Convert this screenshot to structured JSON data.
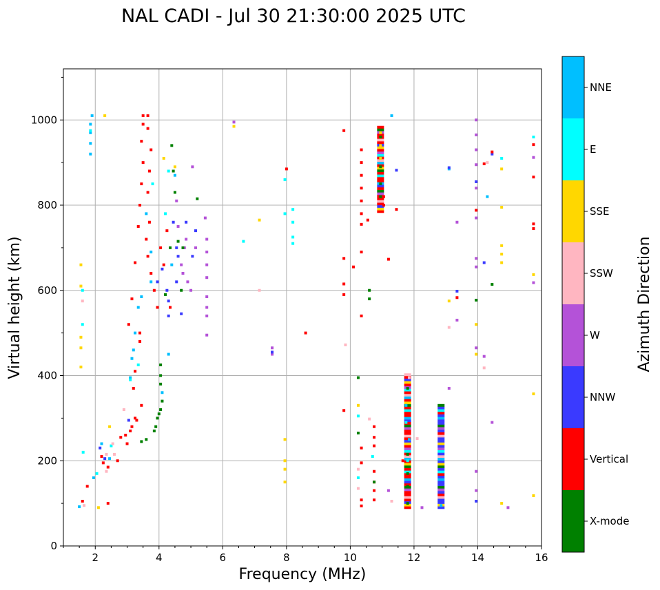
{
  "chart_data": {
    "type": "scatter",
    "title": "NAL CADI - Jul 30 21:30:00 2025 UTC",
    "xlabel": "Frequency (MHz)",
    "ylabel": "Virtual height (km)",
    "xlim": [
      1.0,
      16.0
    ],
    "ylim": [
      0,
      1120
    ],
    "xticks": [
      2,
      4,
      6,
      8,
      10,
      12,
      14,
      16
    ],
    "yticks": [
      0,
      200,
      400,
      600,
      800,
      1000
    ],
    "grid": true,
    "colorbar": {
      "title": "Azimuth Direction",
      "categories": [
        "X-mode",
        "Vertical",
        "NNW",
        "W",
        "SSW",
        "SSE",
        "E",
        "NNE"
      ],
      "colors": {
        "X-mode": "#008000",
        "Vertical": "#ff0000",
        "NNW": "#3a3aff",
        "W": "#b452d8",
        "SSW": "#ffb6c1",
        "SSE": "#ffd700",
        "E": "#00ffff",
        "NNE": "#00bfff"
      }
    },
    "series": [
      {
        "name": "NNE",
        "points": [
          [
            1.5,
            92
          ],
          [
            1.85,
            920
          ],
          [
            1.85,
            945
          ],
          [
            1.85,
            970
          ],
          [
            1.85,
            990
          ],
          [
            1.9,
            1010
          ],
          [
            1.95,
            160
          ],
          [
            2.2,
            240
          ],
          [
            2.45,
            205
          ],
          [
            3.1,
            395
          ],
          [
            3.15,
            440
          ],
          [
            3.2,
            460
          ],
          [
            3.25,
            500
          ],
          [
            3.35,
            560
          ],
          [
            3.45,
            585
          ],
          [
            3.6,
            780
          ],
          [
            3.75,
            620
          ],
          [
            3.75,
            690
          ],
          [
            4.1,
            360
          ],
          [
            4.3,
            450
          ],
          [
            4.4,
            660
          ],
          [
            4.5,
            870
          ],
          [
            11.3,
            1010
          ],
          [
            11.75,
            330
          ],
          [
            11.85,
            250
          ],
          [
            12.85,
            95
          ],
          [
            13.1,
            885
          ],
          [
            14.3,
            820
          ]
        ]
      },
      {
        "name": "E",
        "points": [
          [
            1.6,
            600
          ],
          [
            1.6,
            520
          ],
          [
            1.62,
            220
          ],
          [
            1.85,
            975
          ],
          [
            2.05,
            170
          ],
          [
            2.5,
            235
          ],
          [
            3.1,
            390
          ],
          [
            3.35,
            425
          ],
          [
            3.8,
            850
          ],
          [
            4.2,
            780
          ],
          [
            4.3,
            880
          ],
          [
            6.65,
            715
          ],
          [
            7.95,
            780
          ],
          [
            7.95,
            860
          ],
          [
            8.2,
            725
          ],
          [
            8.2,
            760
          ],
          [
            8.2,
            790
          ],
          [
            8.2,
            710
          ],
          [
            10.25,
            305
          ],
          [
            10.25,
            160
          ],
          [
            10.7,
            210
          ],
          [
            11.75,
            290
          ],
          [
            11.8,
            200
          ],
          [
            15.75,
            960
          ],
          [
            14.75,
            910
          ]
        ]
      },
      {
        "name": "SSE",
        "points": [
          [
            1.55,
            420
          ],
          [
            1.55,
            465
          ],
          [
            1.55,
            490
          ],
          [
            1.55,
            660
          ],
          [
            1.55,
            610
          ],
          [
            2.1,
            90
          ],
          [
            2.3,
            1010
          ],
          [
            2.45,
            280
          ],
          [
            4.15,
            910
          ],
          [
            4.5,
            890
          ],
          [
            6.35,
            985
          ],
          [
            7.15,
            765
          ],
          [
            7.95,
            250
          ],
          [
            7.95,
            200
          ],
          [
            7.95,
            180
          ],
          [
            7.95,
            150
          ],
          [
            10.25,
            330
          ],
          [
            10.95,
            970
          ],
          [
            10.95,
            940
          ],
          [
            10.95,
            910
          ],
          [
            13.1,
            575
          ],
          [
            13.95,
            520
          ],
          [
            13.95,
            450
          ],
          [
            14.75,
            885
          ],
          [
            14.75,
            795
          ],
          [
            14.75,
            705
          ],
          [
            14.75,
            685
          ],
          [
            14.75,
            665
          ],
          [
            14.75,
            100
          ],
          [
            15.75,
            637
          ],
          [
            15.75,
            357
          ],
          [
            15.75,
            118
          ]
        ]
      },
      {
        "name": "SSW",
        "points": [
          [
            1.6,
            575
          ],
          [
            1.65,
            95
          ],
          [
            2.35,
            215
          ],
          [
            2.35,
            175
          ],
          [
            2.55,
            240
          ],
          [
            2.6,
            215
          ],
          [
            2.9,
            320
          ],
          [
            7.15,
            600
          ],
          [
            9.85,
            472
          ],
          [
            10.25,
            180
          ],
          [
            10.25,
            135
          ],
          [
            10.6,
            298
          ],
          [
            11.3,
            105
          ],
          [
            11.85,
            395
          ],
          [
            12.1,
            252
          ],
          [
            13.1,
            513
          ],
          [
            14.2,
            418
          ],
          [
            14.3,
            900
          ]
        ]
      },
      {
        "name": "W",
        "points": [
          [
            4.55,
            810
          ],
          [
            4.6,
            750
          ],
          [
            4.7,
            660
          ],
          [
            4.75,
            640
          ],
          [
            4.8,
            700
          ],
          [
            4.85,
            720
          ],
          [
            4.9,
            620
          ],
          [
            5.0,
            600
          ],
          [
            5.05,
            890
          ],
          [
            5.15,
            700
          ],
          [
            5.45,
            770
          ],
          [
            5.5,
            720
          ],
          [
            5.5,
            690
          ],
          [
            5.5,
            660
          ],
          [
            5.5,
            630
          ],
          [
            5.5,
            585
          ],
          [
            5.5,
            560
          ],
          [
            5.5,
            540
          ],
          [
            5.5,
            495
          ],
          [
            6.35,
            995
          ],
          [
            7.55,
            465
          ],
          [
            7.55,
            450
          ],
          [
            11.2,
            130
          ],
          [
            12.25,
            90
          ],
          [
            13.1,
            370
          ],
          [
            13.35,
            760
          ],
          [
            13.35,
            530
          ],
          [
            13.95,
            1000
          ],
          [
            13.95,
            965
          ],
          [
            13.95,
            930
          ],
          [
            13.95,
            895
          ],
          [
            13.95,
            840
          ],
          [
            13.95,
            770
          ],
          [
            13.95,
            675
          ],
          [
            13.95,
            655
          ],
          [
            13.95,
            465
          ],
          [
            13.95,
            175
          ],
          [
            13.95,
            130
          ],
          [
            14.2,
            445
          ],
          [
            14.45,
            290
          ],
          [
            14.95,
            90
          ],
          [
            15.75,
            912
          ],
          [
            15.75,
            618
          ]
        ]
      },
      {
        "name": "NNW",
        "points": [
          [
            2.15,
            230
          ],
          [
            2.3,
            205
          ],
          [
            3.05,
            295
          ],
          [
            3.95,
            620
          ],
          [
            4.1,
            650
          ],
          [
            4.25,
            600
          ],
          [
            4.3,
            575
          ],
          [
            4.3,
            540
          ],
          [
            4.45,
            760
          ],
          [
            4.55,
            700
          ],
          [
            4.55,
            620
          ],
          [
            4.6,
            680
          ],
          [
            4.7,
            545
          ],
          [
            4.85,
            760
          ],
          [
            5.05,
            680
          ],
          [
            5.15,
            740
          ],
          [
            7.55,
            455
          ],
          [
            11.45,
            882
          ],
          [
            13.1,
            888
          ],
          [
            13.35,
            598
          ],
          [
            13.95,
            855
          ],
          [
            13.95,
            105
          ],
          [
            14.2,
            665
          ],
          [
            14.45,
            920
          ]
        ]
      },
      {
        "name": "Vertical",
        "points": [
          [
            1.6,
            105
          ],
          [
            1.75,
            140
          ],
          [
            2.2,
            210
          ],
          [
            2.25,
            195
          ],
          [
            2.4,
            185
          ],
          [
            2.7,
            200
          ],
          [
            2.8,
            255
          ],
          [
            2.95,
            260
          ],
          [
            3.0,
            240
          ],
          [
            3.1,
            270
          ],
          [
            3.15,
            280
          ],
          [
            3.25,
            300
          ],
          [
            3.2,
            370
          ],
          [
            3.25,
            410
          ],
          [
            3.05,
            520
          ],
          [
            3.15,
            580
          ],
          [
            3.25,
            665
          ],
          [
            3.35,
            750
          ],
          [
            3.4,
            800
          ],
          [
            3.45,
            850
          ],
          [
            3.5,
            900
          ],
          [
            3.45,
            950
          ],
          [
            3.5,
            990
          ],
          [
            3.5,
            1010
          ],
          [
            3.65,
            1010
          ],
          [
            3.65,
            980
          ],
          [
            3.75,
            930
          ],
          [
            3.7,
            880
          ],
          [
            3.65,
            830
          ],
          [
            3.7,
            760
          ],
          [
            3.6,
            720
          ],
          [
            3.65,
            680
          ],
          [
            3.75,
            640
          ],
          [
            3.85,
            600
          ],
          [
            3.95,
            560
          ],
          [
            4.05,
            700
          ],
          [
            4.15,
            660
          ],
          [
            4.25,
            740
          ],
          [
            4.35,
            560
          ],
          [
            3.4,
            500
          ],
          [
            3.4,
            480
          ],
          [
            3.45,
            330
          ],
          [
            3.3,
            295
          ],
          [
            2.4,
            100
          ],
          [
            8.0,
            885
          ],
          [
            8.6,
            500
          ],
          [
            9.8,
            975
          ],
          [
            9.8,
            675
          ],
          [
            9.8,
            615
          ],
          [
            9.8,
            590
          ],
          [
            9.8,
            318
          ],
          [
            10.1,
            655
          ],
          [
            10.35,
            930
          ],
          [
            10.35,
            900
          ],
          [
            10.35,
            870
          ],
          [
            10.35,
            840
          ],
          [
            10.35,
            810
          ],
          [
            10.35,
            780
          ],
          [
            10.35,
            755
          ],
          [
            10.35,
            690
          ],
          [
            10.35,
            540
          ],
          [
            10.35,
            230
          ],
          [
            10.35,
            195
          ],
          [
            10.35,
            108
          ],
          [
            10.35,
            94
          ],
          [
            10.55,
            765
          ],
          [
            10.75,
            280
          ],
          [
            10.75,
            255
          ],
          [
            10.75,
            235
          ],
          [
            10.75,
            175
          ],
          [
            10.75,
            150
          ],
          [
            10.75,
            130
          ],
          [
            10.75,
            108
          ],
          [
            11.05,
            800
          ],
          [
            11.05,
            820
          ],
          [
            11.2,
            673
          ],
          [
            11.45,
            790
          ],
          [
            11.65,
            200
          ],
          [
            13.35,
            583
          ],
          [
            13.95,
            788
          ],
          [
            14.2,
            897
          ],
          [
            14.45,
            925
          ],
          [
            15.75,
            942
          ],
          [
            15.75,
            866
          ],
          [
            15.75,
            756
          ],
          [
            15.75,
            745
          ]
        ]
      },
      {
        "name": "X-mode",
        "points": [
          [
            3.45,
            245
          ],
          [
            3.6,
            250
          ],
          [
            3.85,
            270
          ],
          [
            3.9,
            280
          ],
          [
            3.95,
            300
          ],
          [
            4.0,
            310
          ],
          [
            4.05,
            320
          ],
          [
            4.1,
            340
          ],
          [
            4.05,
            380
          ],
          [
            4.05,
            400
          ],
          [
            4.05,
            425
          ],
          [
            4.2,
            590
          ],
          [
            4.35,
            700
          ],
          [
            4.4,
            940
          ],
          [
            4.45,
            880
          ],
          [
            4.5,
            830
          ],
          [
            4.6,
            715
          ],
          [
            4.75,
            700
          ],
          [
            5.2,
            815
          ],
          [
            4.7,
            600
          ],
          [
            10.25,
            265
          ],
          [
            10.25,
            395
          ],
          [
            10.6,
            600
          ],
          [
            10.6,
            580
          ],
          [
            10.75,
            150
          ],
          [
            10.95,
            960
          ],
          [
            10.95,
            890
          ],
          [
            10.95,
            850
          ],
          [
            10.95,
            820
          ],
          [
            11.8,
            100
          ],
          [
            11.8,
            140
          ],
          [
            11.8,
            170
          ],
          [
            11.8,
            215
          ],
          [
            11.8,
            370
          ],
          [
            13.95,
            577
          ],
          [
            14.45,
            614
          ]
        ]
      }
    ],
    "column_bands": [
      {
        "category": "NNW",
        "x": 12.85,
        "y_from": 90,
        "y_to": 335
      },
      {
        "category": "Vertical",
        "x": 11.8,
        "y_from": 90,
        "y_to": 405
      },
      {
        "category": "Vertical",
        "x": 10.95,
        "y_from": 785,
        "y_to": 985
      }
    ]
  }
}
